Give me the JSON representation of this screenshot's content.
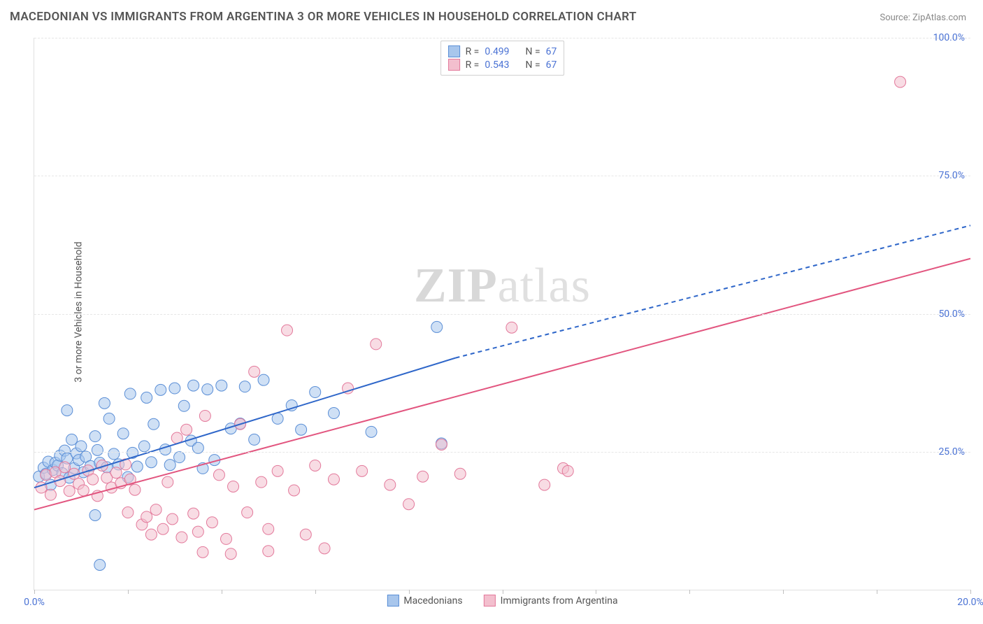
{
  "title": "MACEDONIAN VS IMMIGRANTS FROM ARGENTINA 3 OR MORE VEHICLES IN HOUSEHOLD CORRELATION CHART",
  "source": "Source: ZipAtlas.com",
  "ylabel": "3 or more Vehicles in Household",
  "watermark_a": "ZIP",
  "watermark_b": "atlas",
  "chart": {
    "type": "scatter",
    "xlim": [
      0,
      20
    ],
    "ylim": [
      0,
      100
    ],
    "xtick_step_minor": 2,
    "xtick_labels": [
      {
        "pos": 0,
        "label": "0.0%"
      },
      {
        "pos": 20,
        "label": "20.0%"
      }
    ],
    "ytick_labels": [
      {
        "pos": 25,
        "label": "25.0%"
      },
      {
        "pos": 50,
        "label": "50.0%"
      },
      {
        "pos": 75,
        "label": "75.0%"
      },
      {
        "pos": 100,
        "label": "100.0%"
      }
    ],
    "grid_color": "#e6e6e6",
    "background_color": "#ffffff",
    "marker_radius": 8,
    "marker_opacity": 0.55,
    "series": [
      {
        "name": "Macedonians",
        "color_fill": "#a8c6ec",
        "color_stroke": "#5a8ed6",
        "r": 0.499,
        "n": 67,
        "trend": {
          "x1": 0,
          "y1": 18.5,
          "x2": 9.0,
          "y2": 42.0,
          "ext_x2": 20,
          "ext_y2": 66.0,
          "color": "#2e66c9",
          "width": 2,
          "dash_after_x": 9.0
        },
        "points": [
          [
            0.1,
            20.5
          ],
          [
            0.2,
            22.1
          ],
          [
            0.25,
            21.0
          ],
          [
            0.3,
            23.2
          ],
          [
            0.35,
            19.0
          ],
          [
            0.4,
            21.7
          ],
          [
            0.45,
            23.0
          ],
          [
            0.5,
            22.5
          ],
          [
            0.55,
            24.3
          ],
          [
            0.6,
            21.1
          ],
          [
            0.65,
            25.2
          ],
          [
            0.7,
            23.8
          ],
          [
            0.75,
            20.3
          ],
          [
            0.8,
            27.2
          ],
          [
            0.85,
            22.0
          ],
          [
            0.9,
            24.7
          ],
          [
            0.95,
            23.5
          ],
          [
            1.0,
            26.0
          ],
          [
            1.05,
            21.3
          ],
          [
            1.1,
            24.1
          ],
          [
            1.2,
            22.4
          ],
          [
            1.3,
            27.8
          ],
          [
            1.35,
            25.3
          ],
          [
            1.4,
            23.0
          ],
          [
            1.5,
            33.8
          ],
          [
            1.55,
            22.2
          ],
          [
            1.6,
            31.0
          ],
          [
            1.7,
            24.6
          ],
          [
            1.8,
            22.7
          ],
          [
            1.9,
            28.3
          ],
          [
            2.0,
            20.4
          ],
          [
            2.05,
            35.5
          ],
          [
            2.1,
            24.8
          ],
          [
            2.2,
            22.3
          ],
          [
            2.35,
            26.0
          ],
          [
            2.4,
            34.8
          ],
          [
            2.5,
            23.1
          ],
          [
            2.55,
            30.0
          ],
          [
            2.7,
            36.2
          ],
          [
            2.8,
            25.4
          ],
          [
            2.9,
            22.6
          ],
          [
            3.0,
            36.5
          ],
          [
            3.1,
            24.0
          ],
          [
            3.2,
            33.3
          ],
          [
            3.35,
            27.0
          ],
          [
            3.4,
            37.0
          ],
          [
            3.5,
            25.7
          ],
          [
            3.6,
            22.0
          ],
          [
            3.7,
            36.3
          ],
          [
            3.85,
            23.5
          ],
          [
            4.0,
            37.0
          ],
          [
            4.2,
            29.2
          ],
          [
            4.4,
            30.1
          ],
          [
            4.5,
            36.8
          ],
          [
            4.7,
            27.2
          ],
          [
            4.9,
            38.0
          ],
          [
            5.2,
            31.0
          ],
          [
            5.5,
            33.4
          ],
          [
            5.7,
            29.0
          ],
          [
            6.0,
            35.8
          ],
          [
            6.4,
            32.0
          ],
          [
            7.2,
            28.6
          ],
          [
            8.6,
            47.6
          ],
          [
            8.7,
            26.5
          ],
          [
            1.3,
            13.5
          ],
          [
            1.4,
            4.5
          ],
          [
            0.7,
            32.5
          ]
        ]
      },
      {
        "name": "Immigrants from Argentina",
        "color_fill": "#f3bfce",
        "color_stroke": "#e3799b",
        "r": 0.543,
        "n": 67,
        "trend": {
          "x1": 0,
          "y1": 14.5,
          "x2": 20,
          "y2": 60.0,
          "color": "#e2557f",
          "width": 2
        },
        "points": [
          [
            0.15,
            18.5
          ],
          [
            0.25,
            20.8
          ],
          [
            0.35,
            17.2
          ],
          [
            0.45,
            21.3
          ],
          [
            0.55,
            19.7
          ],
          [
            0.65,
            22.2
          ],
          [
            0.75,
            17.9
          ],
          [
            0.85,
            21.0
          ],
          [
            0.95,
            19.2
          ],
          [
            1.05,
            18.0
          ],
          [
            1.15,
            21.6
          ],
          [
            1.25,
            20.0
          ],
          [
            1.35,
            17.0
          ],
          [
            1.45,
            22.5
          ],
          [
            1.55,
            20.3
          ],
          [
            1.65,
            18.5
          ],
          [
            1.75,
            21.2
          ],
          [
            1.85,
            19.3
          ],
          [
            1.95,
            22.7
          ],
          [
            2.05,
            20.0
          ],
          [
            2.15,
            18.1
          ],
          [
            2.3,
            11.8
          ],
          [
            2.4,
            13.2
          ],
          [
            2.5,
            10.0
          ],
          [
            2.6,
            14.5
          ],
          [
            2.75,
            11.0
          ],
          [
            2.85,
            19.5
          ],
          [
            2.95,
            12.8
          ],
          [
            3.05,
            27.5
          ],
          [
            3.15,
            9.5
          ],
          [
            3.25,
            29.0
          ],
          [
            3.4,
            13.8
          ],
          [
            3.5,
            10.5
          ],
          [
            3.65,
            31.5
          ],
          [
            3.8,
            12.2
          ],
          [
            3.95,
            20.8
          ],
          [
            4.1,
            9.2
          ],
          [
            4.25,
            18.7
          ],
          [
            4.4,
            30.0
          ],
          [
            4.55,
            14.0
          ],
          [
            4.7,
            39.5
          ],
          [
            4.85,
            19.5
          ],
          [
            5.0,
            11.0
          ],
          [
            5.2,
            21.5
          ],
          [
            5.4,
            47.0
          ],
          [
            5.55,
            18.0
          ],
          [
            5.8,
            10.0
          ],
          [
            6.0,
            22.5
          ],
          [
            6.2,
            7.5
          ],
          [
            6.4,
            20.0
          ],
          [
            6.7,
            36.5
          ],
          [
            7.0,
            21.5
          ],
          [
            7.3,
            44.5
          ],
          [
            7.6,
            19.0
          ],
          [
            8.0,
            15.5
          ],
          [
            8.3,
            20.5
          ],
          [
            8.7,
            26.3
          ],
          [
            9.1,
            21.0
          ],
          [
            10.2,
            47.5
          ],
          [
            10.9,
            19.0
          ],
          [
            11.3,
            22.0
          ],
          [
            11.4,
            21.5
          ],
          [
            4.2,
            6.5
          ],
          [
            5.0,
            7.0
          ],
          [
            3.6,
            6.8
          ],
          [
            18.5,
            92.0
          ],
          [
            2.0,
            14.0
          ]
        ]
      }
    ],
    "corr_legend": {
      "r_label": "R =",
      "n_label": "N ="
    },
    "series_legend_order": [
      "Macedonians",
      "Immigrants from Argentina"
    ]
  }
}
